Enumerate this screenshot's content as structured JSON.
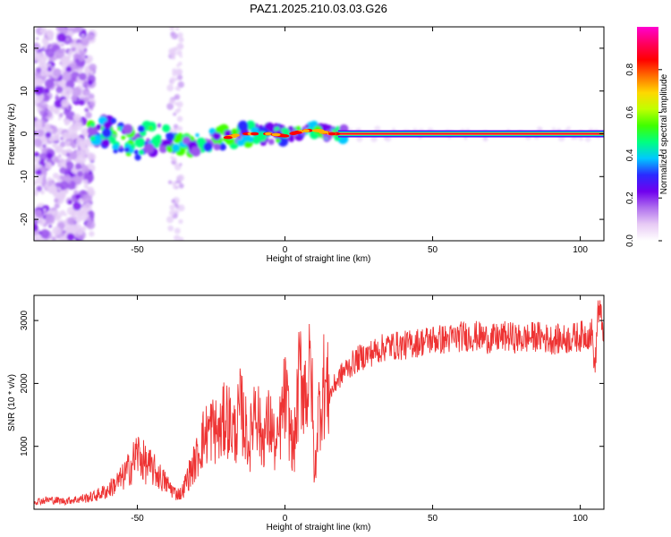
{
  "title": "PAZ1.2025.210.03.03.G26",
  "chart_data": [
    {
      "type": "heatmap",
      "xlabel": "Height of straight line (km)",
      "ylabel": "Frequency (Hz)",
      "xlim": [
        -85,
        108
      ],
      "ylim": [
        -25,
        25
      ],
      "xticks": [
        -50,
        0,
        50,
        100
      ],
      "xtick_labels": [
        "-50",
        "0",
        "50",
        "100"
      ],
      "yticks": [
        -20,
        -10,
        0,
        10,
        20
      ],
      "ytick_labels": [
        "-20",
        "-10",
        "0",
        "10",
        "20"
      ],
      "colorbar": {
        "label": "Normalized spectral amplitude",
        "range": [
          0,
          1
        ],
        "ticks": [
          0.0,
          0.2,
          0.4,
          0.6,
          0.8
        ],
        "tick_labels": [
          "0.0",
          "0.2",
          "0.4",
          "0.6",
          "0.8"
        ],
        "colors": [
          "#ffffff",
          "#e8cbf5",
          "#b070ee",
          "#7000ee",
          "#2a2aff",
          "#00c8ff",
          "#00ff80",
          "#40ff00",
          "#c0ff00",
          "#ffd800",
          "#ff7000",
          "#ff0000",
          "#ff0060",
          "#ff00d0"
        ]
      },
      "ridge": [
        {
          "x": -66,
          "y": 1.0
        },
        {
          "x": -60,
          "y": 0.5
        },
        {
          "x": -55,
          "y": -1.5
        },
        {
          "x": -50,
          "y": -2.5
        },
        {
          "x": -45,
          "y": -1.0
        },
        {
          "x": -40,
          "y": -1.0
        },
        {
          "x": -35,
          "y": -2.5
        },
        {
          "x": -30,
          "y": -2.5
        },
        {
          "x": -25,
          "y": -1.5
        },
        {
          "x": -20,
          "y": -1.0
        },
        {
          "x": -15,
          "y": 0.0
        },
        {
          "x": -10,
          "y": 0.0
        },
        {
          "x": -5,
          "y": 0.0
        },
        {
          "x": 0,
          "y": -0.5
        },
        {
          "x": 5,
          "y": 0.5
        },
        {
          "x": 10,
          "y": 1.0
        },
        {
          "x": 15,
          "y": 0.0
        },
        {
          "x": 20,
          "y": 0.0
        },
        {
          "x": 50,
          "y": 0.0
        },
        {
          "x": 108,
          "y": 0.0
        }
      ]
    },
    {
      "type": "line",
      "xlabel": "Height of straight line (km)",
      "ylabel": "SNR (10 * v/v)",
      "xlim": [
        -85,
        108
      ],
      "ylim": [
        0,
        3400
      ],
      "xticks": [
        -50,
        0,
        50,
        100
      ],
      "xtick_labels": [
        "-50",
        "0",
        "50",
        "100"
      ],
      "yticks": [
        1000,
        2000,
        3000
      ],
      "ytick_labels": [
        "1000",
        "2000",
        "3000"
      ],
      "color": "#ee3333",
      "series": [
        {
          "x": [
            -85,
            -80,
            -75,
            -70,
            -65,
            -60,
            -55,
            -52,
            -50,
            -47,
            -45,
            -42,
            -40,
            -37,
            -35,
            -33,
            -30,
            -28,
            -25,
            -22,
            -20,
            -17,
            -15,
            -12,
            -10,
            -8,
            -5,
            -3,
            0,
            3,
            5,
            7,
            9,
            10,
            11,
            13,
            15,
            17,
            20,
            25,
            30,
            35,
            40,
            45,
            50,
            55,
            60,
            65,
            70,
            75,
            80,
            85,
            90,
            95,
            100,
            104,
            105,
            106,
            108
          ],
          "y": [
            120,
            150,
            130,
            160,
            200,
            300,
            500,
            700,
            900,
            700,
            650,
            500,
            400,
            250,
            250,
            500,
            800,
            1100,
            1300,
            1200,
            1500,
            1200,
            1600,
            1000,
            1800,
            1100,
            1400,
            900,
            1800,
            900,
            2200,
            1900,
            2200,
            400,
            1400,
            2000,
            1800,
            2000,
            2200,
            2400,
            2500,
            2600,
            2600,
            2650,
            2700,
            2700,
            2750,
            2750,
            2700,
            2750,
            2700,
            2750,
            2700,
            2700,
            2750,
            2800,
            2200,
            3200,
            2850
          ]
        }
      ]
    }
  ]
}
